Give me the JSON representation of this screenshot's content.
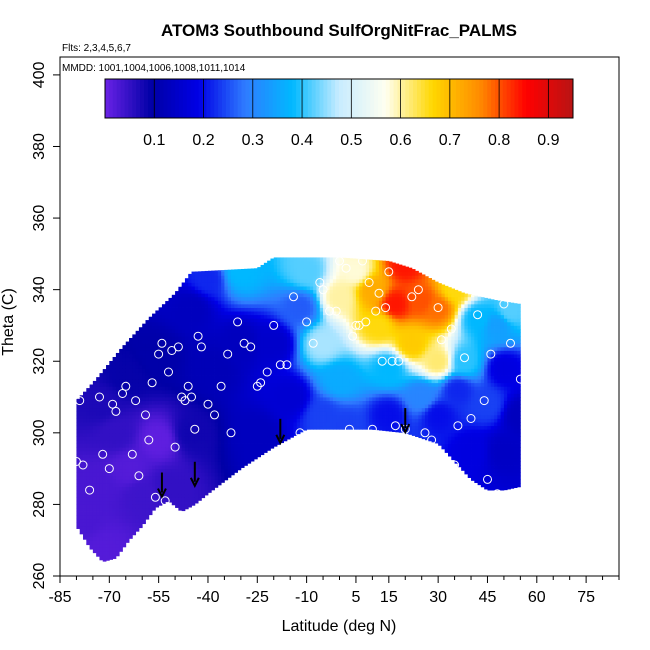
{
  "chart_data": {
    "type": "heatmap",
    "title": "ATOM3 Southbound SulfOrgNitFrac_PALMS",
    "subtitle_flights": "Flts: 2,3,4,5,6,7",
    "subtitle_dates": "MMDD: 1001,1004,1006,1008,1011,1014",
    "xlabel": "Latitude (deg N)",
    "ylabel": "Theta (C)",
    "xlim": [
      -85,
      85
    ],
    "ylim": [
      260,
      405
    ],
    "x_ticks": [
      -85,
      -70,
      -55,
      -40,
      -25,
      -10,
      5,
      15,
      30,
      45,
      60,
      75
    ],
    "x_minor_ticks": [
      -80,
      -75,
      -65,
      -60,
      -50,
      -45,
      -35,
      -30,
      -20,
      -15,
      -5,
      0,
      10,
      20,
      25,
      35,
      40,
      50,
      55,
      65,
      70,
      80,
      85
    ],
    "y_ticks": [
      260,
      280,
      300,
      320,
      340,
      360,
      380,
      400
    ],
    "colorbar": {
      "range": [
        0,
        0.95
      ],
      "ticks": [
        0.1,
        0.2,
        0.3,
        0.4,
        0.5,
        0.6,
        0.7,
        0.8,
        0.9
      ],
      "divisions": [
        0.1,
        0.2,
        0.3,
        0.4,
        0.5,
        0.6,
        0.7,
        0.8,
        0.9
      ],
      "colors": [
        "#6a22e6",
        "#0000a6",
        "#0000e6",
        "#2f7cff",
        "#00b8ff",
        "#c8ecff",
        "#fffff0",
        "#ffd700",
        "#ff8c00",
        "#ff0000",
        "#b81414"
      ]
    },
    "region_bottom": [
      [
        -80,
        274
      ],
      [
        -76,
        268
      ],
      [
        -72,
        264
      ],
      [
        -68,
        265
      ],
      [
        -64,
        270
      ],
      [
        -60,
        274
      ],
      [
        -56,
        279
      ],
      [
        -52,
        281
      ],
      [
        -48,
        278
      ],
      [
        -44,
        280
      ],
      [
        -40,
        283
      ],
      [
        -30,
        290
      ],
      [
        -20,
        296
      ],
      [
        -10,
        301
      ],
      [
        0,
        301
      ],
      [
        10,
        301
      ],
      [
        20,
        300
      ],
      [
        30,
        297
      ],
      [
        35,
        292
      ],
      [
        40,
        287
      ],
      [
        45,
        284
      ],
      [
        50,
        284
      ],
      [
        55,
        285
      ]
    ],
    "region_top": [
      [
        -80,
        309
      ],
      [
        -74,
        315
      ],
      [
        -66,
        324
      ],
      [
        -58,
        332
      ],
      [
        -50,
        339
      ],
      [
        -45,
        345
      ],
      [
        -25,
        346
      ],
      [
        -20,
        349
      ],
      [
        0,
        349
      ],
      [
        15,
        348
      ],
      [
        22,
        346
      ],
      [
        30,
        342
      ],
      [
        38,
        339
      ],
      [
        48,
        337
      ],
      [
        55,
        336
      ]
    ],
    "region_right_bottom": 285,
    "color_field": [
      [
        -78,
        275,
        0.03
      ],
      [
        -74,
        285,
        0.03
      ],
      [
        -72,
        268,
        0.02
      ],
      [
        -68,
        300,
        0.05
      ],
      [
        -64,
        290,
        0.02
      ],
      [
        -60,
        283,
        0.04
      ],
      [
        -55,
        298,
        0.01
      ],
      [
        -52,
        285,
        0.05
      ],
      [
        -45,
        300,
        0.08
      ],
      [
        -72,
        308,
        0.07
      ],
      [
        -65,
        316,
        0.09
      ],
      [
        -55,
        322,
        0.1
      ],
      [
        -45,
        335,
        0.13
      ],
      [
        -38,
        318,
        0.12
      ],
      [
        -30,
        325,
        0.13
      ],
      [
        -25,
        300,
        0.13
      ],
      [
        -20,
        325,
        0.15
      ],
      [
        -15,
        310,
        0.16
      ],
      [
        -12,
        335,
        0.26
      ],
      [
        -10,
        345,
        0.42
      ],
      [
        -30,
        345,
        0.38
      ],
      [
        -40,
        343,
        0.22
      ],
      [
        -5,
        325,
        0.46
      ],
      [
        -5,
        305,
        0.24
      ],
      [
        0,
        315,
        0.36
      ],
      [
        2,
        302,
        0.24
      ],
      [
        0,
        338,
        0.6
      ],
      [
        5,
        345,
        0.58
      ],
      [
        10,
        340,
        0.72
      ],
      [
        12,
        330,
        0.66
      ],
      [
        15,
        318,
        0.38
      ],
      [
        15,
        305,
        0.2
      ],
      [
        17,
        336,
        0.84
      ],
      [
        20,
        347,
        0.84
      ],
      [
        22,
        325,
        0.68
      ],
      [
        25,
        337,
        0.8
      ],
      [
        25,
        310,
        0.3
      ],
      [
        30,
        335,
        0.78
      ],
      [
        30,
        320,
        0.62
      ],
      [
        30,
        305,
        0.2
      ],
      [
        35,
        340,
        0.66
      ],
      [
        36,
        312,
        0.22
      ],
      [
        38,
        320,
        0.4
      ],
      [
        42,
        332,
        0.38
      ],
      [
        45,
        308,
        0.24
      ],
      [
        48,
        330,
        0.34
      ],
      [
        50,
        318,
        0.18
      ],
      [
        52,
        334,
        0.42
      ],
      [
        40,
        295,
        0.18
      ],
      [
        50,
        295,
        0.14
      ],
      [
        55,
        305,
        0.13
      ]
    ],
    "points": [
      [
        -80,
        292
      ],
      [
        -79,
        309
      ],
      [
        -78,
        291
      ],
      [
        -76,
        284
      ],
      [
        -73,
        310
      ],
      [
        -72,
        294
      ],
      [
        -70,
        290
      ],
      [
        -69,
        308
      ],
      [
        -68,
        306
      ],
      [
        -66,
        311
      ],
      [
        -65,
        313
      ],
      [
        -63,
        294
      ],
      [
        -62,
        309
      ],
      [
        -61,
        288
      ],
      [
        -59,
        305
      ],
      [
        -58,
        298
      ],
      [
        -57,
        314
      ],
      [
        -56,
        282
      ],
      [
        -55,
        322
      ],
      [
        -54,
        325
      ],
      [
        -53,
        281
      ],
      [
        -52,
        317
      ],
      [
        -51,
        323
      ],
      [
        -50,
        296
      ],
      [
        -49,
        324
      ],
      [
        -48,
        310
      ],
      [
        -47,
        309
      ],
      [
        -46,
        313
      ],
      [
        -45,
        310
      ],
      [
        -44,
        301
      ],
      [
        -43,
        327
      ],
      [
        -42,
        324
      ],
      [
        -40,
        308
      ],
      [
        -38,
        305
      ],
      [
        -36,
        313
      ],
      [
        -34,
        322
      ],
      [
        -33,
        300
      ],
      [
        -31,
        331
      ],
      [
        -29,
        325
      ],
      [
        -27,
        324
      ],
      [
        -25,
        313
      ],
      [
        -24,
        314
      ],
      [
        -22,
        317
      ],
      [
        -20,
        330
      ],
      [
        -18,
        319
      ],
      [
        -16,
        319
      ],
      [
        -14,
        338
      ],
      [
        -12,
        300
      ],
      [
        -10,
        331
      ],
      [
        -8,
        325
      ],
      [
        -6,
        342
      ],
      [
        -5,
        340
      ],
      [
        -3,
        334
      ],
      [
        -1,
        334
      ],
      [
        0,
        348
      ],
      [
        2,
        346
      ],
      [
        3,
        301
      ],
      [
        4,
        327
      ],
      [
        5,
        330
      ],
      [
        6,
        330
      ],
      [
        7,
        348
      ],
      [
        8,
        331
      ],
      [
        9,
        342
      ],
      [
        10,
        301
      ],
      [
        11,
        334
      ],
      [
        12,
        339
      ],
      [
        13,
        320
      ],
      [
        14,
        335
      ],
      [
        15,
        345
      ],
      [
        16,
        320
      ],
      [
        17,
        302
      ],
      [
        18,
        320
      ],
      [
        20,
        301
      ],
      [
        22,
        338
      ],
      [
        24,
        340
      ],
      [
        26,
        300
      ],
      [
        28,
        298
      ],
      [
        30,
        335
      ],
      [
        31,
        326
      ],
      [
        34,
        329
      ],
      [
        35,
        291
      ],
      [
        36,
        302
      ],
      [
        38,
        321
      ],
      [
        40,
        304
      ],
      [
        42,
        333
      ],
      [
        44,
        309
      ],
      [
        45,
        287
      ],
      [
        46,
        322
      ],
      [
        48,
        283
      ],
      [
        50,
        336
      ],
      [
        52,
        325
      ],
      [
        55,
        315
      ]
    ],
    "arrows": [
      [
        -54,
        285
      ],
      [
        -44,
        288
      ],
      [
        -18,
        300
      ],
      [
        20,
        303
      ]
    ]
  }
}
